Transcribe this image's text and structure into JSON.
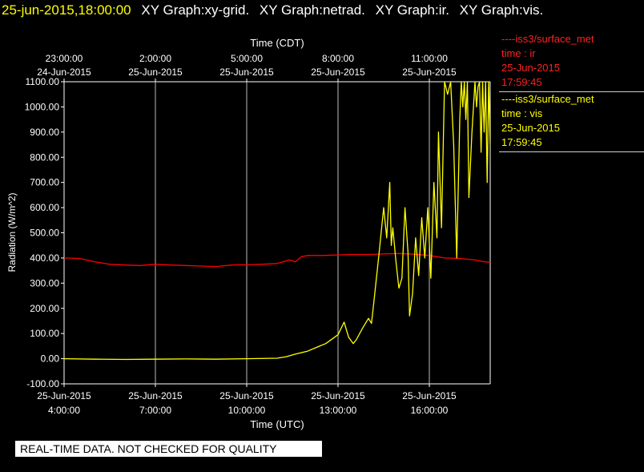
{
  "header": {
    "datetime": "25-jun-2015,18:00:00",
    "graphs": [
      "XY Graph:xy-grid.",
      "XY Graph:netrad.",
      "XY Graph:ir.",
      "XY Graph:vis."
    ]
  },
  "legend": {
    "items": [
      {
        "name": "----iss3/surface_met",
        "var": "time : ir",
        "date": "25-Jun-2015",
        "time": "17:59:45",
        "color": "#ff0000"
      },
      {
        "name": "----iss3/surface_met",
        "var": "time : vis",
        "date": "25-Jun-2015",
        "time": "17:59:45",
        "color": "#ffff00"
      }
    ]
  },
  "warning": "REAL-TIME DATA. NOT CHECKED FOR QUALITY",
  "chart_data": {
    "type": "line",
    "top_axis_label": "Time (CDT)",
    "top_ticks": [
      {
        "time": "23:00:00",
        "date": "24-Jun-2015"
      },
      {
        "time": "2:00:00",
        "date": "25-Jun-2015"
      },
      {
        "time": "5:00:00",
        "date": "25-Jun-2015"
      },
      {
        "time": "8:00:00",
        "date": "25-Jun-2015"
      },
      {
        "time": "11:00:00",
        "date": "25-Jun-2015"
      }
    ],
    "xlabel": "Time (UTC)",
    "bottom_ticks": [
      {
        "date": "25-Jun-2015",
        "time": "4:00:00"
      },
      {
        "date": "25-Jun-2015",
        "time": "7:00:00"
      },
      {
        "date": "25-Jun-2015",
        "time": "10:00:00"
      },
      {
        "date": "25-Jun-2015",
        "time": "13:00:00"
      },
      {
        "date": "25-Jun-2015",
        "time": "16:00:00"
      }
    ],
    "ylabel": "Radiation (W/m^2)",
    "y_ticks": [
      "1100.00",
      "1000.00",
      "900.00",
      "800.00",
      "700.00",
      "600.00",
      "500.00",
      "400.00",
      "300.00",
      "200.00",
      "100.00",
      "0.00",
      "-100.00"
    ],
    "ylim": [
      -100,
      1100
    ],
    "xlim_utc_hours": [
      4.0,
      18.0
    ],
    "grid": "vertical",
    "series": [
      {
        "name": "time : ir",
        "color": "#ff0000",
        "x": [
          4.0,
          4.5,
          5.0,
          5.5,
          6.0,
          6.5,
          7.0,
          7.5,
          8.0,
          8.5,
          9.0,
          9.5,
          10.0,
          10.5,
          11.0,
          11.2,
          11.4,
          11.6,
          11.8,
          12.0,
          12.5,
          13.0,
          13.5,
          14.0,
          14.5,
          15.0,
          15.5,
          16.0,
          16.5,
          17.0,
          17.5,
          17.8,
          18.0
        ],
        "y": [
          400,
          398,
          385,
          375,
          372,
          370,
          375,
          372,
          370,
          368,
          366,
          372,
          373,
          375,
          378,
          385,
          392,
          385,
          405,
          410,
          410,
          412,
          414,
          414,
          416,
          418,
          415,
          410,
          400,
          398,
          392,
          385,
          383
        ]
      },
      {
        "name": "time : vis",
        "color": "#ffff00",
        "x": [
          4.0,
          5.0,
          6.0,
          7.0,
          8.0,
          9.0,
          10.0,
          11.0,
          11.3,
          11.6,
          12.0,
          12.3,
          12.6,
          13.0,
          13.2,
          13.35,
          13.5,
          13.6,
          13.8,
          14.0,
          14.1,
          14.2,
          14.35,
          14.5,
          14.6,
          14.7,
          14.75,
          14.8,
          14.9,
          15.0,
          15.1,
          15.2,
          15.3,
          15.35,
          15.45,
          15.55,
          15.65,
          15.75,
          15.85,
          15.95,
          16.05,
          16.15,
          16.25,
          16.3,
          16.4,
          16.5,
          16.6,
          16.7,
          16.8,
          16.9,
          17.0,
          17.05,
          17.1,
          17.15,
          17.2,
          17.25,
          17.3,
          17.4,
          17.5,
          17.55,
          17.6,
          17.65,
          17.7,
          17.75,
          17.8,
          17.85,
          17.9,
          17.95,
          18.0
        ],
        "y": [
          0,
          -2,
          -3,
          -2,
          -1,
          -2,
          0,
          2,
          8,
          18,
          30,
          45,
          60,
          95,
          145,
          85,
          60,
          75,
          120,
          160,
          140,
          250,
          420,
          600,
          480,
          700,
          450,
          520,
          390,
          280,
          320,
          600,
          420,
          170,
          260,
          480,
          330,
          560,
          400,
          600,
          320,
          700,
          480,
          900,
          520,
          1100,
          1050,
          1100,
          850,
          400,
          950,
          1100,
          1000,
          1100,
          950,
          1100,
          640,
          900,
          1100,
          1000,
          1080,
          1100,
          820,
          1100,
          900,
          1100,
          700,
          1100,
          850
        ]
      }
    ]
  }
}
